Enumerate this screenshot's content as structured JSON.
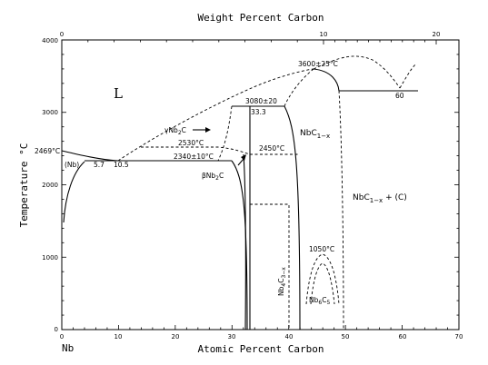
{
  "axes": {
    "top_title": "Weight Percent Carbon",
    "bottom_title": "Atomic Percent Carbon",
    "left_title": "Temperature °C",
    "left_element": "Nb",
    "bottom_ticks": [
      "0",
      "10",
      "20",
      "30",
      "40",
      "50",
      "60",
      "70"
    ],
    "top_ticks": [
      "0",
      "10",
      "20"
    ],
    "left_ticks": [
      "0",
      "1000",
      "2000",
      "3000",
      "4000"
    ]
  },
  "labels": {
    "liquid": "L",
    "nb_phase": "(Nb)",
    "nbc_phase": "NbC",
    "nbc_sub": "1−x",
    "nbc_c_phase": "NbC",
    "nbc_c_sub": "1−x",
    "nbc_c_suffix": " + (C)",
    "gamma_nb2c": "γNb",
    "gamma_sub": "2",
    "gamma_c": "C",
    "beta_nb2c": "βNb",
    "beta_sub": "2",
    "beta_c": "C",
    "nb4c3": "Nb",
    "nb4c3_sub4": "4",
    "nb4c3_c": "C",
    "nb4c3_sub": "3−x",
    "nb6c5": "Nb",
    "nb6c5_sub6": "6",
    "nb6c5_c": "C",
    "nb6c5_sub5": "5"
  },
  "annotations": {
    "t_2469": "2469°C",
    "t_3600": "3600±25°C",
    "t_3080": "3080±20",
    "t_33_3": "33.3",
    "t_2530": "2530°C",
    "t_2340": "2340±10°C",
    "t_2450": "2450°C",
    "t_1050": "1050°C",
    "c_5_7": "5.7",
    "c_10_5": "10.5",
    "c_60": "60"
  }
}
